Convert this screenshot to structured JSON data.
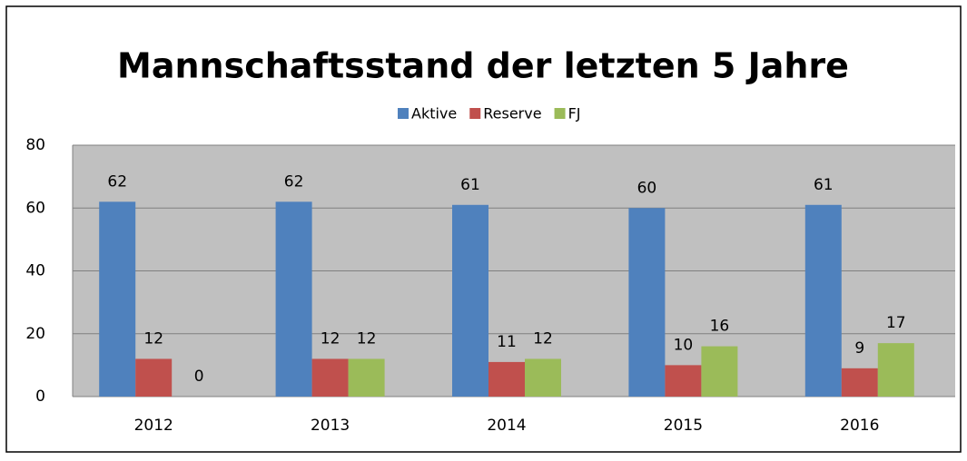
{
  "chart_data": {
    "type": "bar",
    "title": "Mannschaftsstand der letzten 5 Jahre",
    "categories": [
      "2012",
      "2013",
      "2014",
      "2015",
      "2016"
    ],
    "series": [
      {
        "name": "Aktive",
        "color": "#4f81bd",
        "values": [
          62,
          62,
          61,
          60,
          61
        ]
      },
      {
        "name": "Reserve",
        "color": "#c0504d",
        "values": [
          12,
          12,
          11,
          10,
          9
        ]
      },
      {
        "name": "FJ",
        "color": "#9bbb59",
        "values": [
          0,
          12,
          12,
          16,
          17
        ]
      }
    ],
    "ylim": [
      0,
      80
    ],
    "yticks": [
      0,
      20,
      40,
      60,
      80
    ],
    "grid": true,
    "legend": "top"
  }
}
